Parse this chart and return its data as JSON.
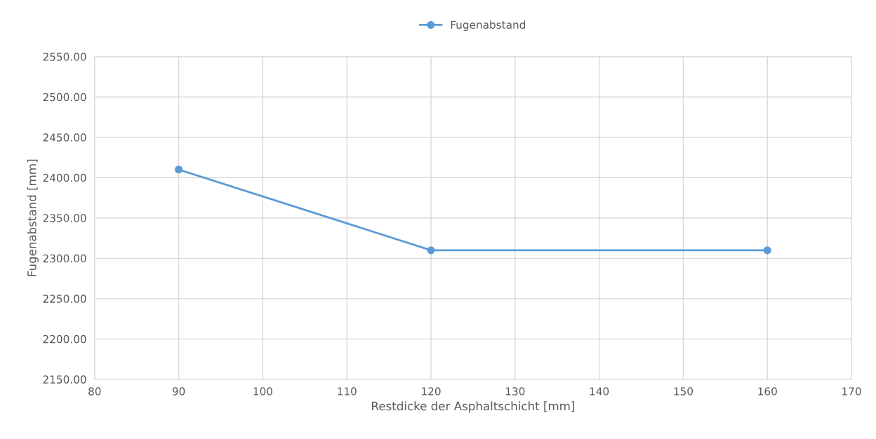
{
  "chart_data": {
    "type": "line",
    "xlabel": "Restdicke der Asphaltschicht [mm]",
    "ylabel": "Fugenabstand [mm]",
    "x": [
      90,
      120,
      160
    ],
    "series": [
      {
        "name": "Fugenabstand",
        "color": "#5b9bd5",
        "values": [
          2410,
          2310,
          2310
        ]
      }
    ],
    "xlim": [
      80,
      170
    ],
    "xticks": [
      80,
      90,
      100,
      110,
      120,
      130,
      140,
      150,
      160,
      170
    ],
    "ylim": [
      2150,
      2550
    ],
    "yticks": [
      {
        "value": 2150,
        "label": "2150.00"
      },
      {
        "value": 2200,
        "label": "2200.00"
      },
      {
        "value": 2250,
        "label": "2250.00"
      },
      {
        "value": 2300,
        "label": "2300.00"
      },
      {
        "value": 2350,
        "label": "2350.00"
      },
      {
        "value": 2400,
        "label": "2400.00"
      },
      {
        "value": 2450,
        "label": "2450.00"
      },
      {
        "value": 2500,
        "label": "2500.00"
      },
      {
        "value": 2550,
        "label": "2550.00"
      }
    ],
    "grid": true,
    "legend": "top",
    "marker": "circle",
    "line_style": "solid"
  }
}
